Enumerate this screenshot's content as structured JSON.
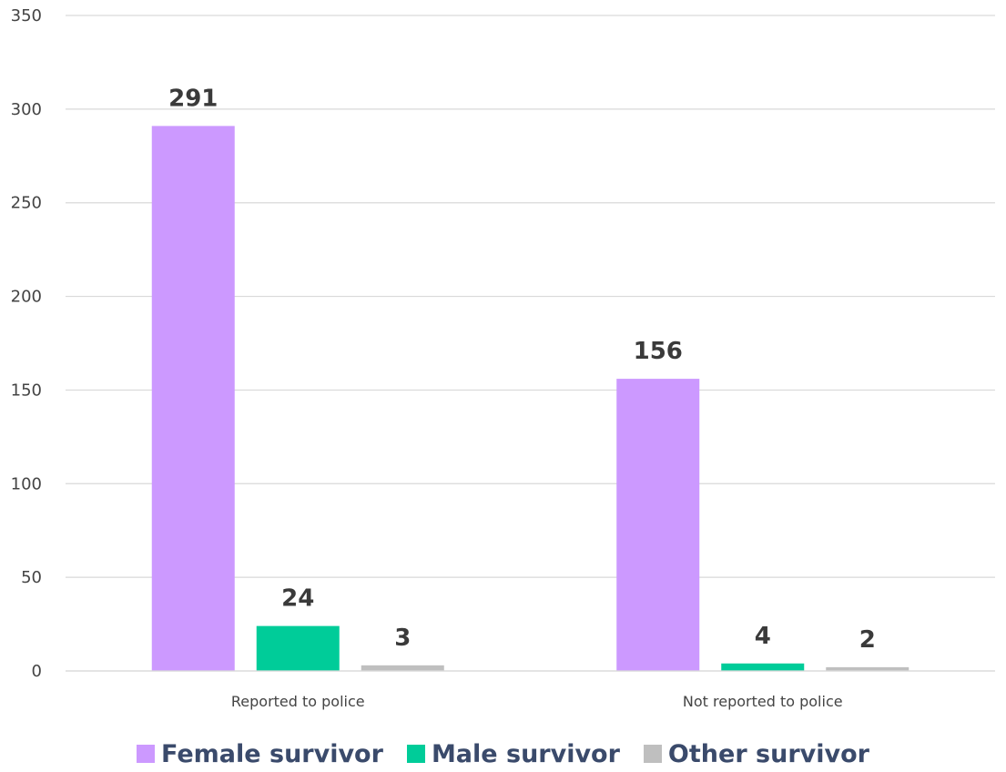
{
  "chart_data": {
    "type": "bar",
    "title": "",
    "xlabel": "",
    "ylabel": "",
    "categories": [
      "Reported to police",
      "Not reported to police"
    ],
    "series": [
      {
        "name": "Female survivor",
        "values": [
          291,
          156
        ],
        "color": "#cc99ff"
      },
      {
        "name": "Male survivor",
        "values": [
          24,
          4
        ],
        "color": "#00cc99"
      },
      {
        "name": "Other survivor",
        "values": [
          3,
          2
        ],
        "color": "#bfbfbf"
      }
    ],
    "ylim": [
      0,
      350
    ],
    "yticks": [
      "0",
      "50",
      "100",
      "150",
      "200",
      "250",
      "300",
      "350"
    ],
    "grid": true,
    "legend_position": "bottom",
    "data_labels": true
  }
}
